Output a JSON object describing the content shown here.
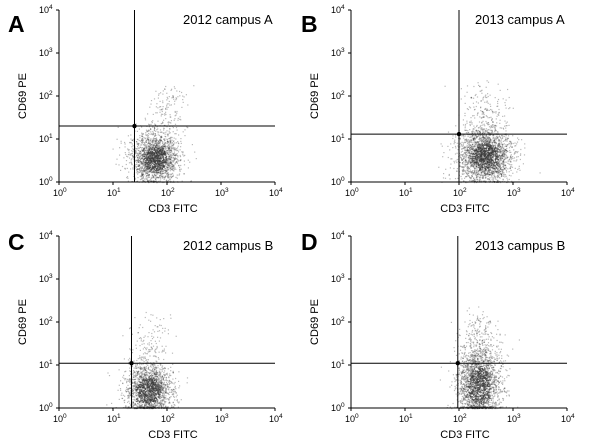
{
  "chart_data": [
    {
      "type": "scatter",
      "panel_label": "A",
      "title": "2012 campus A",
      "xlabel": "CD3 FITC",
      "ylabel": "CD69 PE",
      "xscale": "log",
      "yscale": "log",
      "xlim": [
        1,
        10000
      ],
      "ylim": [
        1,
        10000
      ],
      "x_tick_labels": [
        {
          "base": "10",
          "exp": "0"
        },
        {
          "base": "10",
          "exp": "1"
        },
        {
          "base": "10",
          "exp": "2"
        },
        {
          "base": "10",
          "exp": "3"
        },
        {
          "base": "10",
          "exp": "4"
        }
      ],
      "y_tick_labels": [
        {
          "base": "10",
          "exp": "0"
        },
        {
          "base": "10",
          "exp": "1"
        },
        {
          "base": "10",
          "exp": "2"
        },
        {
          "base": "10",
          "exp": "3"
        },
        {
          "base": "10",
          "exp": "4"
        }
      ],
      "quadrant_gate": {
        "x": 25,
        "y": 20
      },
      "population": {
        "x_center": 60,
        "y_center": 3.5,
        "x_spread_decades": 0.22,
        "y_spread_decades": 0.28,
        "tail_toward": "upper-right",
        "events": 2200
      },
      "grid": false,
      "legend": "none"
    },
    {
      "type": "scatter",
      "panel_label": "B",
      "title": "2013 campus A",
      "xlabel": "CD3 FITC",
      "ylabel": "CD69 PE",
      "xscale": "log",
      "yscale": "log",
      "xlim": [
        1,
        10000
      ],
      "ylim": [
        1,
        10000
      ],
      "x_tick_labels": [
        {
          "base": "10",
          "exp": "0"
        },
        {
          "base": "10",
          "exp": "1"
        },
        {
          "base": "10",
          "exp": "2"
        },
        {
          "base": "10",
          "exp": "3"
        },
        {
          "base": "10",
          "exp": "4"
        }
      ],
      "y_tick_labels": [
        {
          "base": "10",
          "exp": "0"
        },
        {
          "base": "10",
          "exp": "1"
        },
        {
          "base": "10",
          "exp": "2"
        },
        {
          "base": "10",
          "exp": "3"
        },
        {
          "base": "10",
          "exp": "4"
        }
      ],
      "quadrant_gate": {
        "x": 100,
        "y": 13
      },
      "population": {
        "x_center": 300,
        "y_center": 4,
        "x_spread_decades": 0.25,
        "y_spread_decades": 0.32,
        "tail_toward": "upper",
        "events": 2600
      },
      "grid": false,
      "legend": "none"
    },
    {
      "type": "scatter",
      "panel_label": "C",
      "title": "2012 campus B",
      "xlabel": "CD3 FITC",
      "ylabel": "CD69 PE",
      "xscale": "log",
      "yscale": "log",
      "xlim": [
        1,
        10000
      ],
      "ylim": [
        1,
        10000
      ],
      "x_tick_labels": [
        {
          "base": "10",
          "exp": "0"
        },
        {
          "base": "10",
          "exp": "1"
        },
        {
          "base": "10",
          "exp": "2"
        },
        {
          "base": "10",
          "exp": "3"
        },
        {
          "base": "10",
          "exp": "4"
        }
      ],
      "y_tick_labels": [
        {
          "base": "10",
          "exp": "0"
        },
        {
          "base": "10",
          "exp": "1"
        },
        {
          "base": "10",
          "exp": "2"
        },
        {
          "base": "10",
          "exp": "3"
        },
        {
          "base": "10",
          "exp": "4"
        }
      ],
      "quadrant_gate": {
        "x": 22,
        "y": 11
      },
      "population": {
        "x_center": 45,
        "y_center": 2.6,
        "x_spread_decades": 0.22,
        "y_spread_decades": 0.3,
        "tail_toward": "upper",
        "events": 2000
      },
      "grid": false,
      "legend": "none"
    },
    {
      "type": "scatter",
      "panel_label": "D",
      "title": "2013 campus B",
      "xlabel": "CD3 FITC",
      "ylabel": "CD69 PE",
      "xscale": "log",
      "yscale": "log",
      "xlim": [
        1,
        10000
      ],
      "ylim": [
        1,
        10000
      ],
      "x_tick_labels": [
        {
          "base": "10",
          "exp": "0"
        },
        {
          "base": "10",
          "exp": "1"
        },
        {
          "base": "10",
          "exp": "2"
        },
        {
          "base": "10",
          "exp": "3"
        },
        {
          "base": "10",
          "exp": "4"
        }
      ],
      "y_tick_labels": [
        {
          "base": "10",
          "exp": "0"
        },
        {
          "base": "10",
          "exp": "1"
        },
        {
          "base": "10",
          "exp": "2"
        },
        {
          "base": "10",
          "exp": "3"
        },
        {
          "base": "10",
          "exp": "4"
        }
      ],
      "quadrant_gate": {
        "x": 95,
        "y": 11
      },
      "population": {
        "x_center": 230,
        "y_center": 3.5,
        "x_spread_decades": 0.2,
        "y_spread_decades": 0.45,
        "tail_toward": "upper",
        "events": 2400
      },
      "grid": false,
      "legend": "none"
    }
  ],
  "colors": {
    "axis": "#000000",
    "events": "#3a3a3a",
    "gate": "#000000",
    "background": "#ffffff"
  }
}
